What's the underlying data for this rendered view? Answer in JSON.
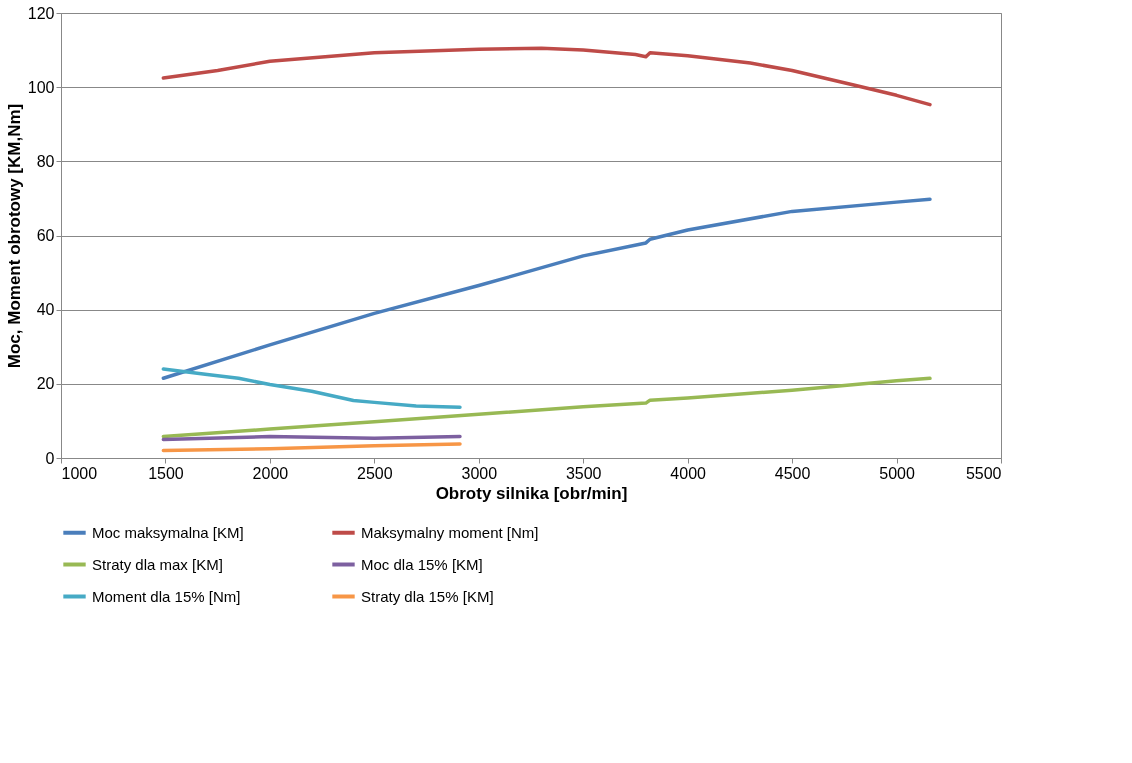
{
  "chart_data": {
    "type": "line",
    "xlabel": "Obroty silnika [obr/min]",
    "ylabel": "Moc, Moment obrotowy [KM,Nm]",
    "xlim": [
      1000,
      5500
    ],
    "xticks": [
      1000,
      1500,
      2000,
      2500,
      3000,
      3500,
      4000,
      4500,
      5000,
      5500
    ],
    "ylim": [
      0,
      120
    ],
    "yticks": [
      0,
      20,
      40,
      60,
      80,
      100,
      120
    ],
    "grid": "y",
    "legend": "bottom",
    "marker": "none",
    "line_style": "solid",
    "series": [
      {
        "name": "Moc maksymalna [KM]",
        "color": "#4a7ebb",
        "x": [
          1490,
          2000,
          2500,
          3000,
          3500,
          3800,
          3820,
          4000,
          4500,
          5000,
          5160
        ],
        "values": [
          21.5,
          30.5,
          39,
          46.5,
          54.5,
          58,
          59,
          61.5,
          66.5,
          69,
          69.8
        ]
      },
      {
        "name": "Maksymalny moment [Nm]",
        "color": "#be4b48",
        "x": [
          1490,
          1750,
          2000,
          2500,
          3000,
          3300,
          3500,
          3750,
          3800,
          3820,
          4000,
          4300,
          4500,
          4800,
          5000,
          5160
        ],
        "values": [
          102.5,
          104.5,
          107,
          109.3,
          110.2,
          110.5,
          110,
          108.8,
          108.2,
          109.3,
          108.5,
          106.5,
          104.5,
          100.5,
          97.8,
          95.3
        ]
      },
      {
        "name": "Straty dla max [KM]",
        "color": "#98b954",
        "x": [
          1490,
          2000,
          2500,
          3000,
          3500,
          3800,
          3820,
          4000,
          4500,
          5000,
          5160
        ],
        "values": [
          5.8,
          7.8,
          9.8,
          11.8,
          13.8,
          14.8,
          15.6,
          16.2,
          18.3,
          20.8,
          21.5
        ]
      },
      {
        "name": "Moc dla 15% [KM]",
        "color": "#7d60a0",
        "x": [
          1490,
          2000,
          2500,
          2910
        ],
        "values": [
          5,
          5.8,
          5.3,
          5.8
        ]
      },
      {
        "name": "Moment dla 15% [Nm]",
        "color": "#46aac5",
        "x": [
          1490,
          1700,
          1850,
          2000,
          2200,
          2400,
          2500,
          2700,
          2910
        ],
        "values": [
          24,
          22.5,
          21.5,
          19.8,
          18,
          15.5,
          15,
          14,
          13.7
        ]
      },
      {
        "name": "Straty dla 15% [KM]",
        "color": "#f79646",
        "x": [
          1490,
          2000,
          2500,
          2910
        ],
        "values": [
          2,
          2.5,
          3.3,
          3.8
        ]
      }
    ]
  }
}
